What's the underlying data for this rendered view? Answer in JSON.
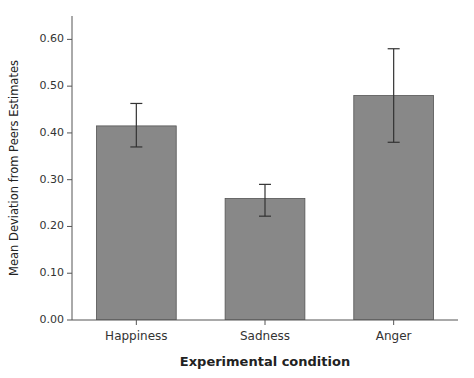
{
  "chart_data": {
    "type": "bar",
    "categories": [
      "Happiness",
      "Sadness",
      "Anger"
    ],
    "values": [
      0.415,
      0.26,
      0.48
    ],
    "error_lower": [
      0.045,
      0.038,
      0.1
    ],
    "error_upper": [
      0.048,
      0.03,
      0.1
    ],
    "color": "#888888",
    "xlabel": "Experimental condition",
    "ylabel": "Mean Deviation from Peers Estimates",
    "ylim": [
      0.0,
      0.65
    ],
    "yticks": [
      {
        "value": 0.0,
        "label": "0.00"
      },
      {
        "value": 0.1,
        "label": "0.10"
      },
      {
        "value": 0.2,
        "label": "0.20"
      },
      {
        "value": 0.3,
        "label": "0.30"
      },
      {
        "value": 0.4,
        "label": "0.40"
      },
      {
        "value": 0.5,
        "label": "0.50"
      },
      {
        "value": 0.6,
        "label": "0.60"
      }
    ],
    "grid": false
  }
}
